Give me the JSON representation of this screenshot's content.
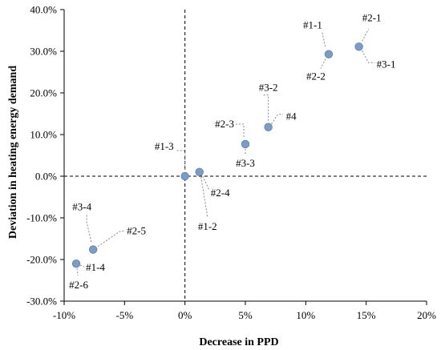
{
  "chart_data": {
    "type": "scatter",
    "title": "",
    "xlabel": "Decrease in PPD",
    "ylabel": "Deviation in heating energy demand",
    "xlim": [
      -10,
      20
    ],
    "ylim": [
      -30,
      40
    ],
    "x_unit": "%",
    "y_unit": "%",
    "x_ticks": [
      -10,
      -5,
      0,
      5,
      10,
      15,
      20
    ],
    "x_tick_labels": [
      "-10%",
      "-5%",
      "0%",
      "5%",
      "10%",
      "15%",
      "20%"
    ],
    "y_ticks": [
      -30,
      -20,
      -10,
      0,
      10,
      20,
      30,
      40
    ],
    "y_tick_labels": [
      "-30.0%",
      "-20.0%",
      "-10.0%",
      "0.0%",
      "10.0%",
      "20.0%",
      "30.0%",
      "40.0%"
    ],
    "grid": false,
    "reference_lines": {
      "x": 0,
      "y": 0,
      "style": "dashed"
    },
    "marker_color": "#7b9cc7",
    "points": [
      {
        "x": 0.0,
        "y": 0.0,
        "labels": [
          "#1-3"
        ]
      },
      {
        "x": 1.2,
        "y": 1.0,
        "labels": [
          "#2-4",
          "#1-2"
        ]
      },
      {
        "x": 5.0,
        "y": 7.7,
        "labels": [
          "#2-3",
          "#3-3"
        ]
      },
      {
        "x": 6.9,
        "y": 11.8,
        "labels": [
          "#3-2",
          "#4"
        ]
      },
      {
        "x": 11.9,
        "y": 29.3,
        "labels": [
          "#1-1",
          "#2-2"
        ]
      },
      {
        "x": 14.4,
        "y": 31.1,
        "labels": [
          "#2-1",
          "#3-1"
        ]
      },
      {
        "x": -7.6,
        "y": -17.6,
        "labels": [
          "#3-4",
          "#2-5"
        ]
      },
      {
        "x": -9.0,
        "y": -21.0,
        "labels": [
          "#1-4",
          "#2-6"
        ]
      }
    ]
  }
}
